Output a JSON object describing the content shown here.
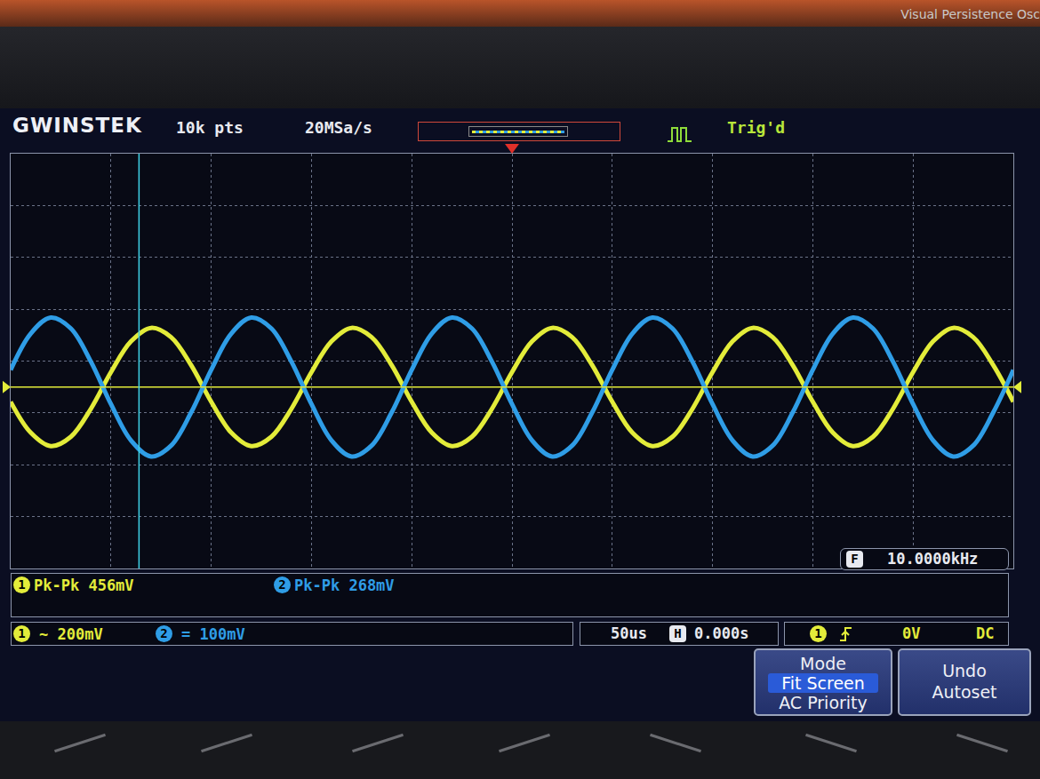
{
  "chart_data": {
    "type": "line",
    "x": [
      -250,
      -240,
      -230,
      -220,
      -210,
      -200,
      -190,
      -180,
      -170,
      -160,
      -150,
      -140,
      -130,
      -120,
      -110,
      -100,
      -90,
      -80,
      -70,
      -60,
      -50,
      -40,
      -30,
      -20,
      -10,
      0,
      10,
      20,
      30,
      40,
      50,
      60,
      70,
      80,
      90,
      100,
      110,
      120,
      130,
      140,
      150,
      160,
      170,
      180,
      190,
      200,
      210,
      220,
      230,
      240,
      250
    ],
    "series": [
      {
        "name": "1",
        "color": "#e3ec3a",
        "values": [
          -57,
          -176,
          -228,
          -192,
          -84,
          57,
          176,
          228,
          192,
          84,
          -57,
          -176,
          -228,
          -192,
          -84,
          57,
          176,
          228,
          192,
          84,
          -57,
          -176,
          -228,
          -192,
          -84,
          57,
          176,
          228,
          192,
          84,
          -57,
          -176,
          -228,
          -192,
          -84,
          57,
          176,
          228,
          192,
          84,
          -57,
          -176,
          -228,
          -192,
          -84,
          57,
          176,
          228,
          192,
          84,
          -57
        ]
      },
      {
        "name": "2",
        "color": "#2f9de6",
        "axis": "y2",
        "values": [
          33,
          103,
          134,
          113,
          49,
          -33,
          -103,
          -134,
          -113,
          -49,
          33,
          103,
          134,
          113,
          49,
          -33,
          -103,
          -134,
          -113,
          -49,
          33,
          103,
          134,
          113,
          49,
          -33,
          -103,
          -134,
          -113,
          -49,
          33,
          103,
          134,
          113,
          49,
          -33,
          -103,
          -134,
          -113,
          -49,
          33,
          103,
          134,
          113,
          49,
          -33,
          -103,
          -134,
          -113,
          -49,
          33
        ]
      }
    ],
    "xlim": [
      -250,
      250
    ],
    "xticks": [
      -250,
      -200,
      -150,
      -100,
      -50,
      0,
      50,
      100,
      150,
      200,
      250
    ],
    "ylim": [
      -700,
      900
    ],
    "yticks": [
      -700,
      -500,
      -300,
      -100,
      100,
      300,
      500,
      700,
      900
    ],
    "y2lim": [
      -350,
      450
    ],
    "y2ticks": [
      -350,
      -250,
      -150,
      -50,
      50,
      150,
      250,
      350,
      450
    ],
    "grid": true,
    "tick_labels": false,
    "trigger_level": 0,
    "trigger_time": 0,
    "cursor": -186
  },
  "screen": {
    "bezel": "Visual Persistence Osc",
    "brand": "GWINSTEK",
    "memory": "10k pts",
    "sample_rate": "20MSa/s",
    "trigger_status": "Trig'd",
    "frequency": {
      "badge": "F",
      "text": "10.0000kHz"
    },
    "measurements": [
      {
        "channel": "1",
        "text": "Pk-Pk 456mV"
      },
      {
        "channel": "2",
        "text": "Pk-Pk 268mV"
      }
    ],
    "channels": [
      {
        "channel": "1",
        "coupling": "~",
        "scale": "200mV"
      },
      {
        "channel": "2",
        "coupling": "=",
        "scale": "100mV"
      }
    ],
    "timebase": {
      "scale": "50us",
      "badge": "H",
      "position": "0.000s"
    },
    "trigger": {
      "channel": "1",
      "level": "0V",
      "coupling": "DC"
    },
    "softkeys": [
      {
        "lines": [
          "Mode",
          "Fit Screen",
          "AC Priority"
        ],
        "selected": 1
      },
      {
        "lines": [
          "Undo",
          "Autoset"
        ]
      }
    ]
  }
}
